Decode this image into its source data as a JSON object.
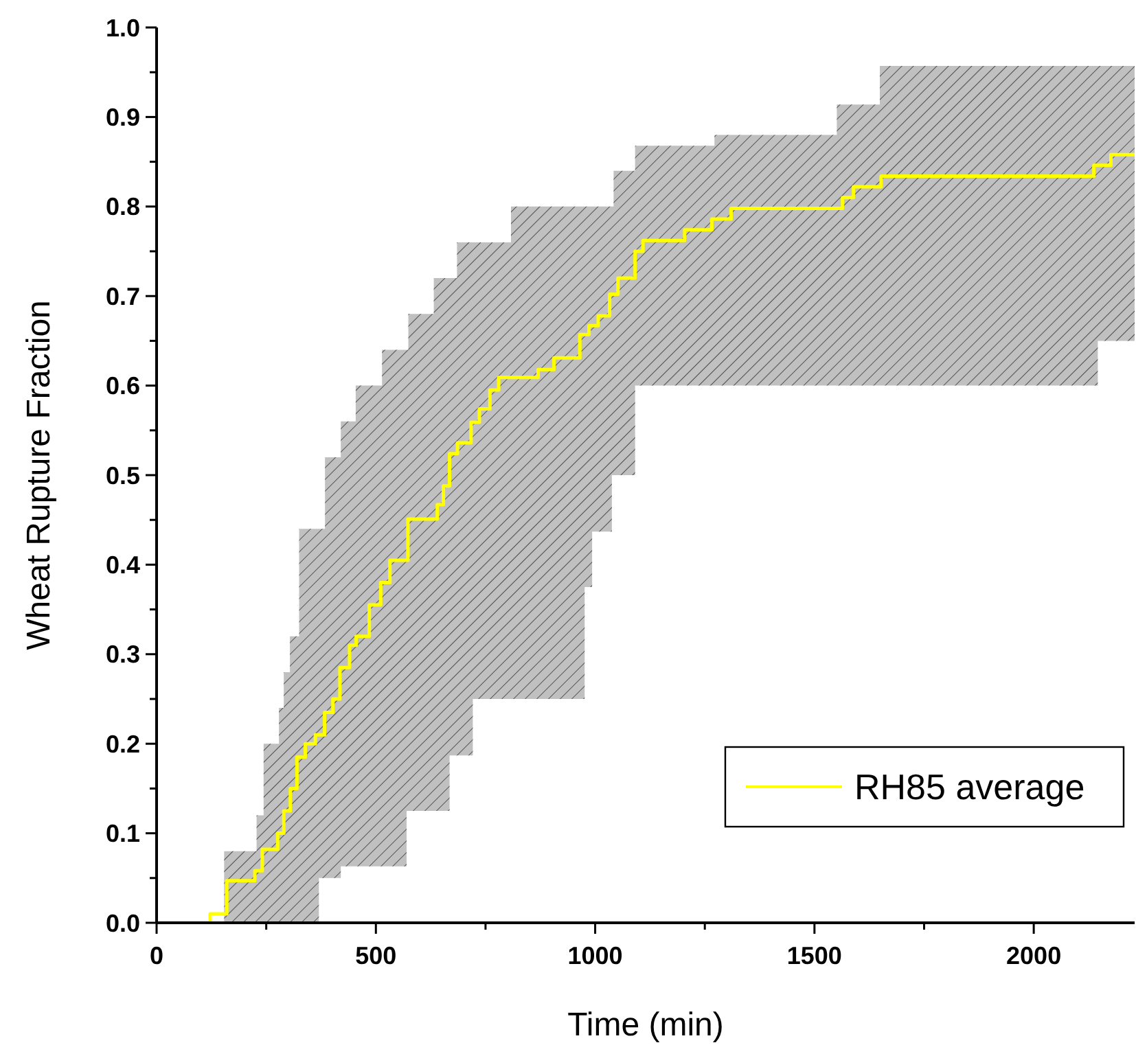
{
  "chart_data": {
    "type": "step",
    "xlabel": "Time (min)",
    "ylabel": "Wheat Rupture Fraction",
    "xlim": [
      0,
      2230
    ],
    "ylim": [
      0,
      1
    ],
    "xticks": [
      0,
      {
        "value": 250,
        "label": null
      },
      500,
      {
        "value": 750,
        "label": null
      },
      1000,
      {
        "value": 1250,
        "label": null
      },
      1500,
      {
        "value": 1750,
        "label": null
      },
      2000
    ],
    "yticks": [
      {
        "value": 0,
        "label": "0.0"
      },
      {
        "value": 0.05,
        "label": null
      },
      0.1,
      {
        "value": 0.15,
        "label": null
      },
      0.2,
      {
        "value": 0.25,
        "label": null
      },
      0.3,
      {
        "value": 0.35,
        "label": null
      },
      0.4,
      {
        "value": 0.45,
        "label": null
      },
      0.5,
      {
        "value": 0.55,
        "label": null
      },
      0.6,
      {
        "value": 0.65,
        "label": null
      },
      0.7,
      {
        "value": 0.75,
        "label": null
      },
      0.8,
      {
        "value": 0.85,
        "label": null
      },
      0.9,
      {
        "value": 0.95,
        "label": null
      },
      {
        "value": 1,
        "label": "1.0"
      }
    ],
    "legend": "bottom right",
    "series": [
      {
        "name": "RH85 average",
        "color": "#ffff00",
        "x": [
          0,
          122,
          154,
          160,
          224,
          228,
          241,
          244,
          276,
          279,
          290,
          304,
          305,
          320,
          325,
          339,
          362,
          370,
          383,
          384,
          402,
          418,
          420,
          440,
          454,
          455,
          485,
          511,
          514,
          532,
          570,
          573,
          574,
          632,
          640,
          654,
          668,
          685,
          686,
          717,
          721,
          736,
          760,
          780,
          808,
          870,
          906,
          965,
          976,
          986,
          993,
          1007,
          1033,
          1038,
          1042,
          1052,
          1091,
          1109,
          1204,
          1266,
          1272,
          1310,
          1551,
          1564,
          1589,
          1649,
          1652,
          2137,
          2146,
          2176,
          2230
        ],
        "values": [
          0,
          0.01,
          0.01,
          0.047,
          0.058,
          0.058,
          0.082,
          0.082,
          0.1,
          0.1,
          0.125,
          0.125,
          0.15,
          0.185,
          0.185,
          0.2,
          0.21,
          0.21,
          0.235,
          0.235,
          0.25,
          0.285,
          0.285,
          0.31,
          0.31,
          0.32,
          0.355,
          0.38,
          0.38,
          0.405,
          0.405,
          0.451,
          0.451,
          0.451,
          0.467,
          0.488,
          0.524,
          0.524,
          0.536,
          0.559,
          0.559,
          0.574,
          0.595,
          0.609,
          0.609,
          0.618,
          0.631,
          0.657,
          0.657,
          0.667,
          0.667,
          0.678,
          0.702,
          0.702,
          0.702,
          0.72,
          0.75,
          0.762,
          0.774,
          0.786,
          0.786,
          0.798,
          0.798,
          0.81,
          0.822,
          0.822,
          0.834,
          0.846,
          0.846,
          0.858,
          0.858
        ],
        "lower": [
          null,
          null,
          0,
          0,
          0,
          0,
          0,
          0,
          0,
          0,
          0,
          0,
          0,
          0,
          0,
          0,
          0,
          0.05,
          0.05,
          0.05,
          0.05,
          0.05,
          0.063,
          0.063,
          0.063,
          0.063,
          0.063,
          0.063,
          0.063,
          0.063,
          0.125,
          0.125,
          0.125,
          0.125,
          0.125,
          0.125,
          0.187,
          0.187,
          0.187,
          0.187,
          0.25,
          0.25,
          0.25,
          0.25,
          0.25,
          0.25,
          0.25,
          0.25,
          0.375,
          0.375,
          0.437,
          0.437,
          0.437,
          0.5,
          0.5,
          0.5,
          0.6,
          0.6,
          0.6,
          0.6,
          0.6,
          0.6,
          0.6,
          0.6,
          0.6,
          0.6,
          0.6,
          0.6,
          0.65,
          0.65,
          0.65
        ],
        "upper": [
          null,
          null,
          0.08,
          0.08,
          0.08,
          0.12,
          0.12,
          0.2,
          0.2,
          0.24,
          0.28,
          0.32,
          0.32,
          0.32,
          0.44,
          0.44,
          0.44,
          0.44,
          0.44,
          0.52,
          0.52,
          0.52,
          0.56,
          0.56,
          0.6,
          0.6,
          0.6,
          0.6,
          0.64,
          0.64,
          0.64,
          0.64,
          0.68,
          0.72,
          0.72,
          0.72,
          0.72,
          0.76,
          0.76,
          0.76,
          0.76,
          0.76,
          0.76,
          0.76,
          0.8,
          0.8,
          0.8,
          0.8,
          0.8,
          0.8,
          0.8,
          0.8,
          0.8,
          0.8,
          0.84,
          0.84,
          0.868,
          0.868,
          0.868,
          0.868,
          0.88,
          0.88,
          0.914,
          0.914,
          0.914,
          0.957,
          0.957,
          0.957,
          0.957,
          0.957,
          0.957
        ]
      }
    ]
  }
}
